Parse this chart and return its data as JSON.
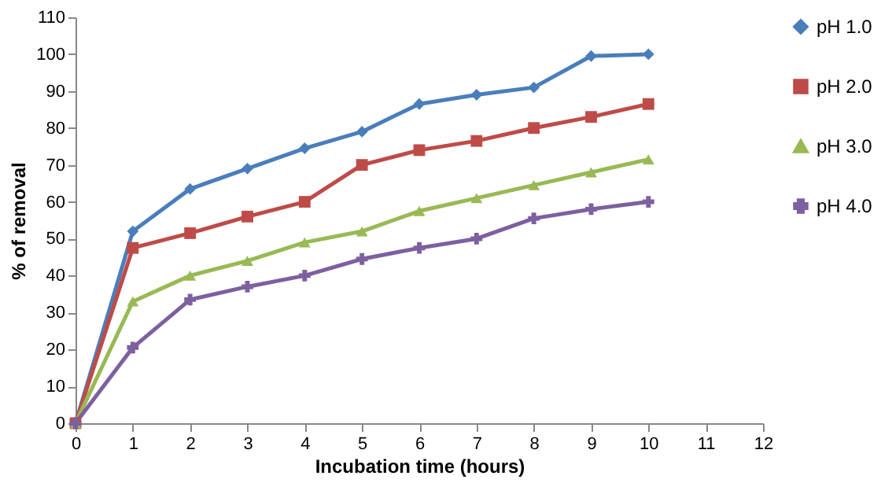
{
  "chart_data": {
    "type": "line",
    "xlabel": "Incubation time (hours)",
    "ylabel": "% of removal",
    "x": [
      0,
      1,
      2,
      3,
      4,
      5,
      6,
      7,
      8,
      9,
      10
    ],
    "series": [
      {
        "name": "pH 1.0",
        "color": "#4a7ebb",
        "marker": "diamond",
        "values": [
          0,
          52,
          63.5,
          69,
          74.5,
          79,
          86.5,
          89,
          91,
          99.5,
          100
        ]
      },
      {
        "name": "pH 2.0",
        "color": "#be4b48",
        "marker": "square",
        "values": [
          0,
          47.5,
          51.5,
          56,
          60,
          70,
          74,
          76.5,
          80,
          83,
          86.5
        ]
      },
      {
        "name": "pH 3.0",
        "color": "#98b954",
        "marker": "triangle",
        "values": [
          0,
          33,
          40,
          44,
          49,
          52,
          57.5,
          61,
          64.5,
          68,
          71.5
        ]
      },
      {
        "name": "pH 4.0",
        "color": "#7d60a0",
        "marker": "cross",
        "values": [
          0,
          20.5,
          33.5,
          37,
          40,
          44.5,
          47.5,
          50,
          55.5,
          58,
          60
        ]
      }
    ],
    "xlim": [
      0,
      12
    ],
    "xticks": [
      0,
      1,
      2,
      3,
      4,
      5,
      6,
      7,
      8,
      9,
      10,
      11,
      12
    ],
    "ylim": [
      0,
      110
    ],
    "yticks": [
      0,
      10,
      20,
      30,
      40,
      50,
      60,
      70,
      80,
      90,
      100,
      110
    ],
    "grid": false,
    "legend": "right",
    "line_style": "solid"
  }
}
